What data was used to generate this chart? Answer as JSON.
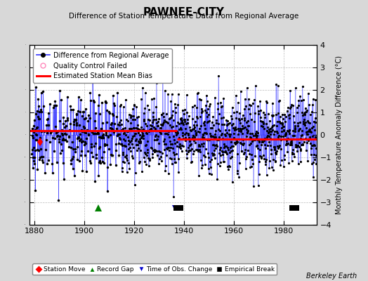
{
  "title": "PAWNEE-CITY",
  "subtitle": "Difference of Station Temperature Data from Regional Average",
  "ylabel_right": "Monthly Temperature Anomaly Difference (°C)",
  "credit": "Berkeley Earth",
  "xlim": [
    1878,
    1993
  ],
  "ylim": [
    -4,
    4
  ],
  "yticks": [
    -4,
    -3,
    -2,
    -1,
    0,
    1,
    2,
    3,
    4
  ],
  "xticks": [
    1880,
    1900,
    1920,
    1940,
    1960,
    1980
  ],
  "bg_color": "#d8d8d8",
  "plot_bg_color": "#ffffff",
  "line_color": "#3333ff",
  "marker_color": "#000000",
  "bias_color": "#ff0000",
  "seed": 42,
  "station_move_x": 1882.3,
  "station_move_y": -0.32,
  "record_gap_x": 1905.5,
  "record_gap_y": -3.25,
  "obs_change_x1": 1936.2,
  "obs_change_x2": 1938.0,
  "obs_change_y": -3.25,
  "emp_break_x1": 1936.8,
  "emp_break_x2": 1938.5,
  "emp_break_x3": 1983.3,
  "emp_break_x4": 1985.0,
  "emp_break_y": -3.25,
  "sym_y": -3.25,
  "bias_segments": [
    {
      "x_start": 1878,
      "x_end": 1937,
      "bias": 0.18
    },
    {
      "x_start": 1937,
      "x_end": 1993,
      "bias": -0.18
    }
  ],
  "dense_start": 1914,
  "dense_end": 1993,
  "sparse_seed": 123
}
